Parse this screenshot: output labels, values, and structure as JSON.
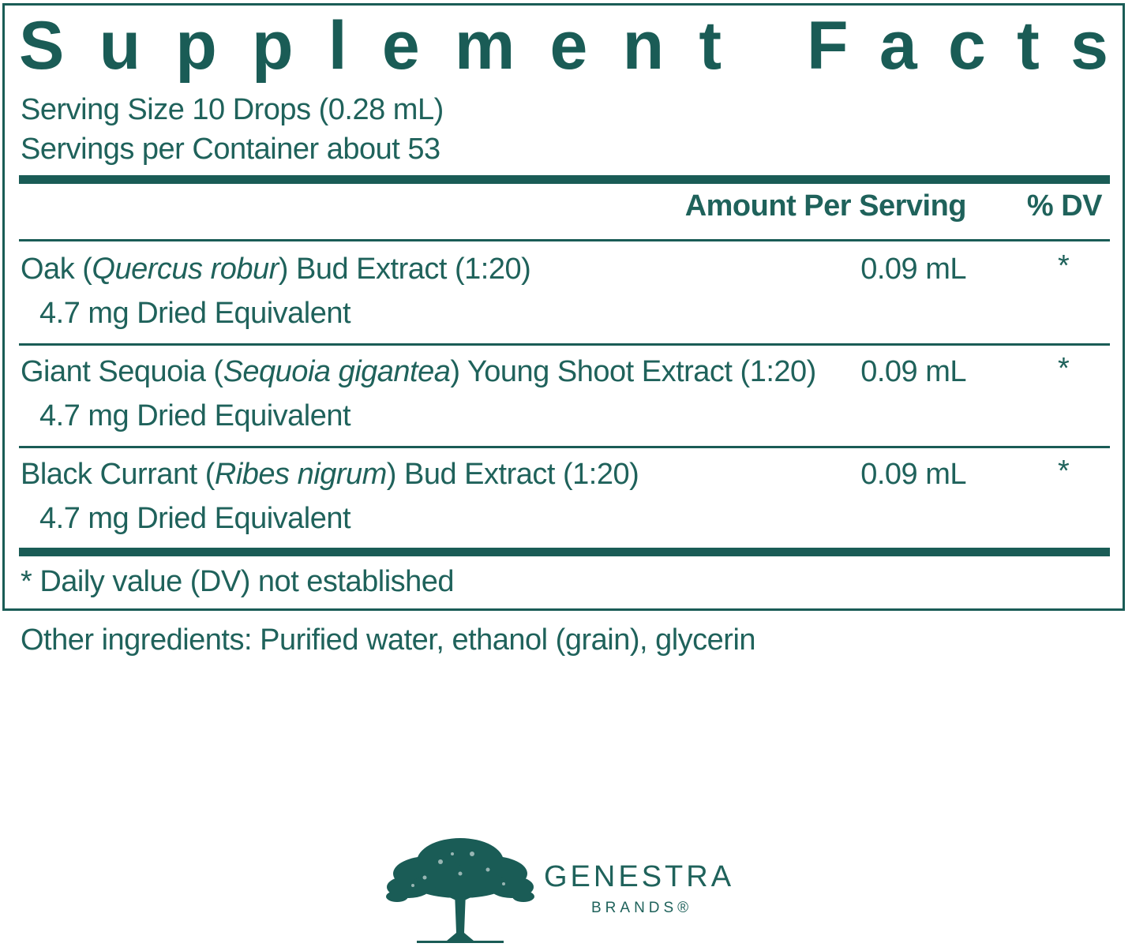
{
  "panel": {
    "title_word1": [
      "S",
      "u",
      "p",
      "p",
      "l",
      "e",
      "m",
      "e",
      "n",
      "t"
    ],
    "title_word2": [
      "F",
      "a",
      "c",
      "t",
      "s"
    ],
    "serving_size": "Serving Size 10 Drops (0.28 mL)",
    "servings_per_container": "Servings per Container about 53",
    "header": {
      "amount_label": "Amount Per Serving",
      "dv_label": "% DV"
    },
    "rows": [
      {
        "name_prefix": "Oak (",
        "name_latin": "Quercus robur",
        "name_suffix": ") Bud Extract (1:20)",
        "sub": "4.7 mg Dried Equivalent",
        "amount": "0.09 mL",
        "dv": "*"
      },
      {
        "name_prefix": "Giant Sequoia (",
        "name_latin": "Sequoia gigantea",
        "name_suffix": ") Young Shoot Extract (1:20)",
        "sub": "4.7 mg Dried Equivalent",
        "amount": "0.09 mL",
        "dv": "*"
      },
      {
        "name_prefix": "Black Currant (",
        "name_latin": "Ribes nigrum",
        "name_suffix": ") Bud Extract (1:20)",
        "sub": "4.7 mg Dried Equivalent",
        "amount": "0.09 mL",
        "dv": "*"
      }
    ],
    "footnote": "* Daily value (DV) not established"
  },
  "other_ingredients": "Other ingredients: Purified water, ethanol (grain), glycerin",
  "brand": {
    "name": "GENESTRA",
    "sub": "BRANDS®",
    "logo_icon": "tree-icon"
  },
  "colors": {
    "primary": "#1a5c56",
    "background": "#ffffff"
  }
}
